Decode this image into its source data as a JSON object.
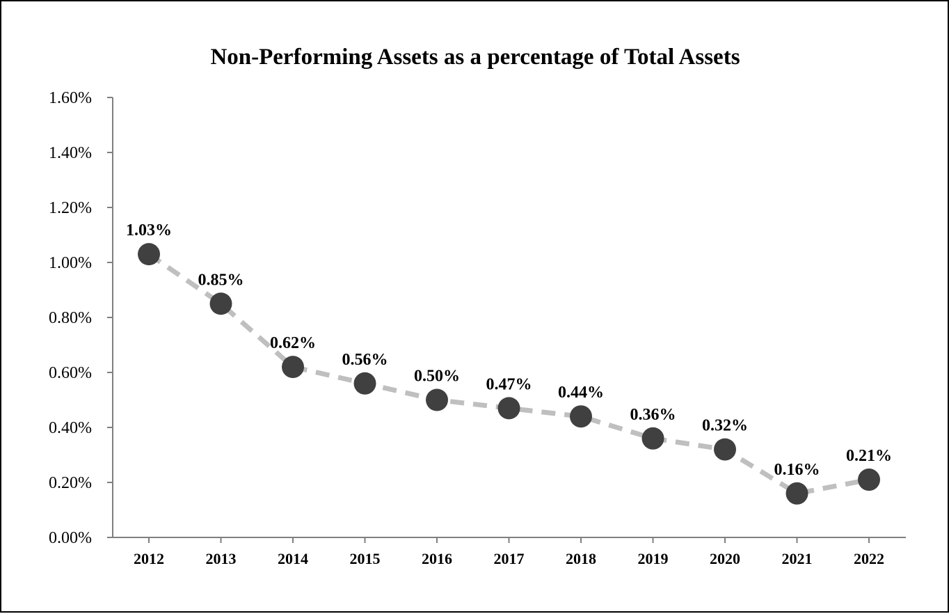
{
  "chart_data": {
    "type": "line",
    "title": "Non-Performing Assets as a percentage of Total Assets",
    "xlabel": "",
    "ylabel": "",
    "categories": [
      "2012",
      "2013",
      "2014",
      "2015",
      "2016",
      "2017",
      "2018",
      "2019",
      "2020",
      "2021",
      "2022"
    ],
    "values": [
      1.03,
      0.85,
      0.62,
      0.56,
      0.5,
      0.47,
      0.44,
      0.36,
      0.32,
      0.16,
      0.21
    ],
    "data_labels": [
      "1.03%",
      "0.85%",
      "0.62%",
      "0.56%",
      "0.50%",
      "0.47%",
      "0.44%",
      "0.36%",
      "0.32%",
      "0.16%",
      "0.21%"
    ],
    "y_ticks": [
      "0.00%",
      "0.20%",
      "0.40%",
      "0.60%",
      "0.80%",
      "1.00%",
      "1.20%",
      "1.40%",
      "1.60%"
    ],
    "y_tick_values": [
      0,
      0.2,
      0.4,
      0.6,
      0.8,
      1.0,
      1.2,
      1.4,
      1.6
    ],
    "ylim": [
      0,
      1.6
    ],
    "grid": false,
    "legend": "none",
    "line_style": "dashed",
    "colors": {
      "line": "#bfbfbf",
      "marker": "#404040",
      "axis": "#7f7f7f",
      "text": "#000000",
      "border": "#000000"
    }
  }
}
